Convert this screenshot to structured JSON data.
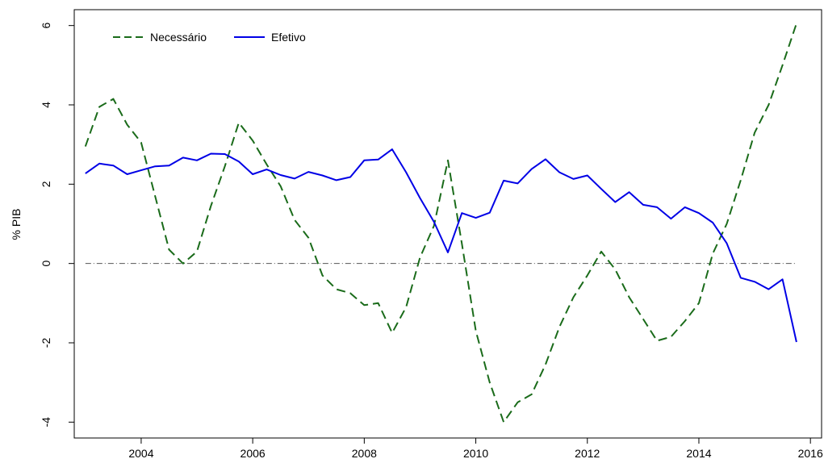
{
  "chart_data": {
    "type": "line",
    "title": "",
    "xlabel": "",
    "ylabel": "% PIB",
    "xlim": [
      2002.8,
      2016.2
    ],
    "ylim": [
      -4.4,
      6.4
    ],
    "xticks": [
      2004,
      2006,
      2008,
      2010,
      2012,
      2014,
      2016
    ],
    "xtick_labels": [
      "2004",
      "2006",
      "2008",
      "2010",
      "2012",
      "2014",
      "2016"
    ],
    "yticks": [
      -4,
      -2,
      0,
      2,
      4,
      6
    ],
    "ytick_labels": [
      "-4",
      "-2",
      "0",
      "2",
      "4",
      "6"
    ],
    "grid": false,
    "legend_position": "top-left",
    "reference_line": {
      "y": 0,
      "style": "dash-dot",
      "color": "#555555"
    },
    "x": [
      2003.0,
      2003.25,
      2003.5,
      2003.75,
      2004.0,
      2004.25,
      2004.5,
      2004.75,
      2005.0,
      2005.25,
      2005.5,
      2005.75,
      2006.0,
      2006.25,
      2006.5,
      2006.75,
      2007.0,
      2007.25,
      2007.5,
      2007.75,
      2008.0,
      2008.25,
      2008.5,
      2008.75,
      2009.0,
      2009.25,
      2009.5,
      2009.75,
      2010.0,
      2010.25,
      2010.5,
      2010.75,
      2011.0,
      2011.25,
      2011.5,
      2011.75,
      2012.0,
      2012.25,
      2012.5,
      2012.75,
      2013.0,
      2013.25,
      2013.5,
      2013.75,
      2014.0,
      2014.25,
      2014.5,
      2014.75,
      2015.0,
      2015.25,
      2015.5,
      2015.75
    ],
    "series": [
      {
        "name": "Necessário",
        "color": "#1a6b1a",
        "dash": "dashed",
        "values": [
          2.95,
          3.95,
          4.15,
          3.5,
          3.05,
          1.7,
          0.35,
          0.0,
          0.3,
          1.45,
          2.45,
          3.55,
          3.1,
          2.5,
          1.95,
          1.1,
          0.65,
          -0.3,
          -0.65,
          -0.75,
          -1.05,
          -1.0,
          -1.75,
          -1.1,
          0.15,
          0.95,
          2.6,
          0.5,
          -1.7,
          -3.0,
          -4.0,
          -3.5,
          -3.3,
          -2.55,
          -1.6,
          -0.85,
          -0.3,
          0.3,
          -0.15,
          -0.85,
          -1.4,
          -1.95,
          -1.85,
          -1.45,
          -1.0,
          0.25,
          1.0,
          2.1,
          3.3,
          4.0,
          5.0,
          6.05
        ]
      },
      {
        "name": "Efetivo",
        "color": "#0000e6",
        "dash": "solid",
        "values": [
          2.27,
          2.52,
          2.47,
          2.25,
          2.35,
          2.45,
          2.47,
          2.67,
          2.6,
          2.77,
          2.76,
          2.57,
          2.25,
          2.37,
          2.23,
          2.14,
          2.31,
          2.22,
          2.1,
          2.18,
          2.6,
          2.62,
          2.88,
          2.3,
          1.65,
          1.05,
          0.28,
          1.27,
          1.15,
          1.28,
          2.09,
          2.02,
          2.38,
          2.63,
          2.3,
          2.13,
          2.22,
          1.88,
          1.55,
          1.8,
          1.48,
          1.42,
          1.13,
          1.42,
          1.27,
          1.03,
          0.51,
          -0.36,
          -0.46,
          -0.65,
          -0.4,
          -1.98
        ]
      }
    ]
  }
}
